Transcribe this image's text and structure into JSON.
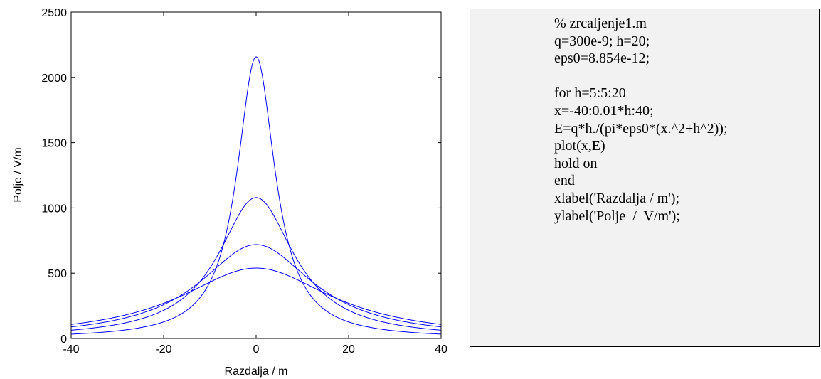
{
  "chart_data": {
    "type": "line",
    "xlabel": "Razdalja / m",
    "ylabel": "Polje  /  V/m",
    "xlim": [
      -40,
      40
    ],
    "ylim": [
      0,
      2500
    ],
    "xticks": [
      "-40",
      "-20",
      "0",
      "20",
      "40"
    ],
    "yticks": [
      "0",
      "500",
      "1000",
      "1500",
      "2000",
      "2500"
    ],
    "grid": false,
    "line_color": "#0000ff",
    "series": [
      {
        "h": 5,
        "x_range": [
          -40,
          40
        ],
        "peak": 2157
      },
      {
        "h": 10,
        "x_range": [
          -40,
          40
        ],
        "peak": 1079
      },
      {
        "h": 15,
        "x_range": [
          -40,
          40
        ],
        "peak": 719
      },
      {
        "h": 20,
        "x_range": [
          -40,
          40
        ],
        "peak": 539
      }
    ]
  },
  "code": {
    "lines": [
      "% zrcaljenje1.m",
      "q=300e-9; h=20;",
      "eps0=8.854e-12;",
      "",
      "for h=5:5:20",
      "x=-40:0.01*h:40;",
      "E=q*h./(pi*eps0*(x.^2+h^2));",
      "plot(x,E)",
      "hold on",
      "end",
      "xlabel('Razdalja / m');",
      "ylabel('Polje  /  V/m');"
    ]
  }
}
